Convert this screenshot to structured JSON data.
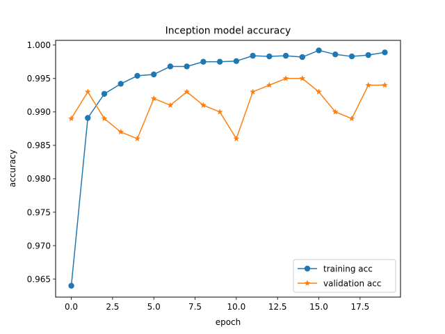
{
  "chart_data": {
    "type": "line",
    "title": "Inception model accuracy",
    "xlabel": "epoch",
    "ylabel": "accuracy",
    "xlim": [
      -0.95,
      19.95
    ],
    "ylim": [
      0.9623,
      1.0007
    ],
    "xticks": [
      0.0,
      2.5,
      5.0,
      7.5,
      10.0,
      12.5,
      15.0,
      17.5
    ],
    "xtick_labels": [
      "0.0",
      "2.5",
      "5.0",
      "7.5",
      "10.0",
      "12.5",
      "15.0",
      "17.5"
    ],
    "yticks": [
      0.965,
      0.97,
      0.975,
      0.98,
      0.985,
      0.99,
      0.995,
      1.0
    ],
    "ytick_labels": [
      "0.965",
      "0.970",
      "0.975",
      "0.980",
      "0.985",
      "0.990",
      "0.995",
      "1.000"
    ],
    "grid": false,
    "legend_position": "lower-right",
    "x": [
      0,
      1,
      2,
      3,
      4,
      5,
      6,
      7,
      8,
      9,
      10,
      11,
      12,
      13,
      14,
      15,
      16,
      17,
      18,
      19
    ],
    "series": [
      {
        "name": "training acc",
        "color": "#1f77b4",
        "marker": "circle",
        "values": [
          0.964,
          0.9891,
          0.9927,
          0.9942,
          0.9954,
          0.9956,
          0.9968,
          0.9968,
          0.9975,
          0.9975,
          0.9976,
          0.9984,
          0.9983,
          0.9984,
          0.9982,
          0.9992,
          0.9986,
          0.9983,
          0.9985,
          0.9989
        ]
      },
      {
        "name": "validation acc",
        "color": "#ff7f0e",
        "marker": "star",
        "values": [
          0.989,
          0.993,
          0.989,
          0.987,
          0.986,
          0.992,
          0.991,
          0.993,
          0.991,
          0.99,
          0.986,
          0.993,
          0.994,
          0.995,
          0.995,
          0.993,
          0.99,
          0.989,
          0.994,
          0.994
        ]
      }
    ]
  }
}
